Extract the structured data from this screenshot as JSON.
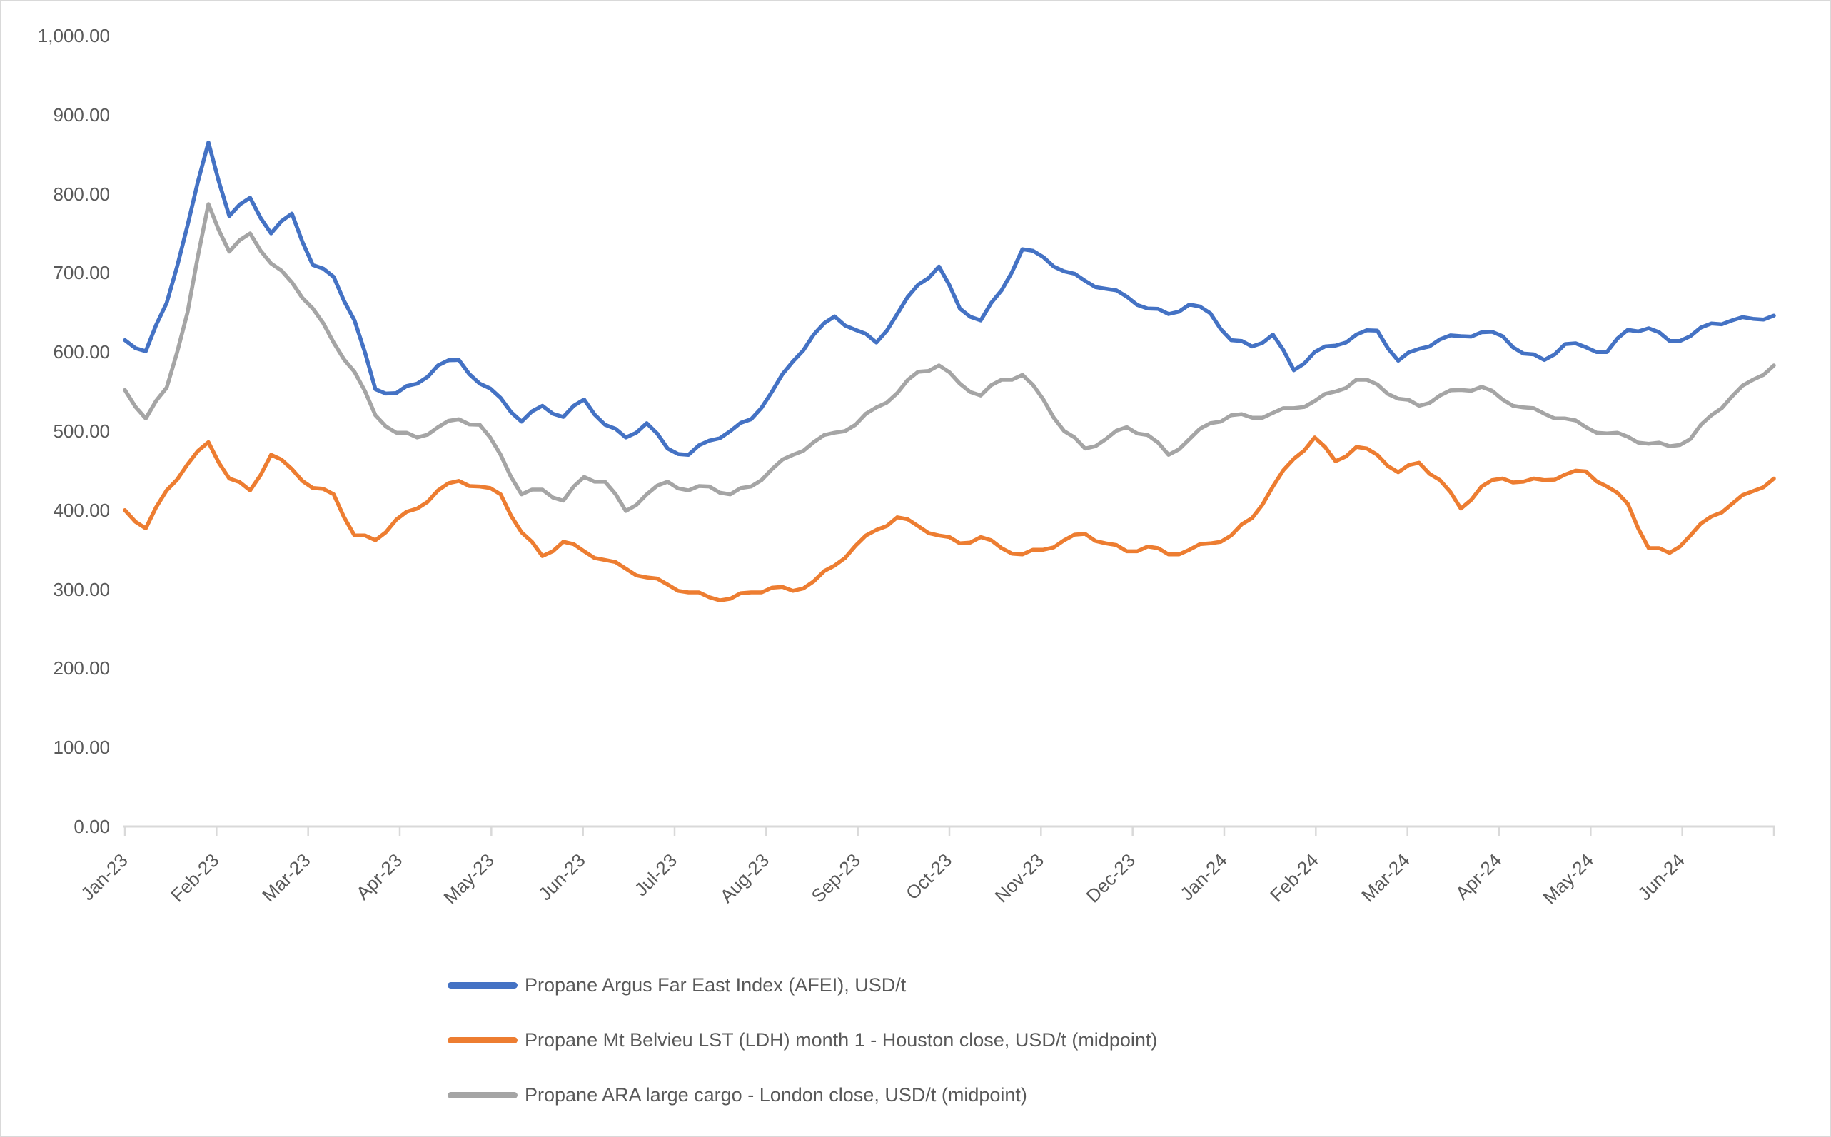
{
  "chart_data": {
    "type": "line",
    "title": "",
    "xlabel": "",
    "ylabel": "",
    "grid": false,
    "legend_position": "bottom-left",
    "ylim": [
      0,
      1000
    ],
    "y_step": 100,
    "y_tick_labels": [
      "0.00",
      "100.00",
      "200.00",
      "300.00",
      "400.00",
      "500.00",
      "600.00",
      "700.00",
      "800.00",
      "900.00",
      "1,000.00"
    ],
    "x_tick_labels": [
      "Jan-23",
      "Feb-23",
      "Mar-23",
      "Apr-23",
      "May-23",
      "Jun-23",
      "Jul-23",
      "Aug-23",
      "Sep-23",
      "Oct-23",
      "Nov-23",
      "Dec-23",
      "Jan-24",
      "Feb-24",
      "Mar-24",
      "Apr-24",
      "May-24",
      "Jun-24"
    ],
    "x_months_total": 18,
    "sampling": "approx weekly values digitized from daily price lines, Jan 2023 - early Jul 2024",
    "series": [
      {
        "id": "afei",
        "name": "Propane Argus Far East Index (AFEI), USD/t",
        "color": "#4472C4",
        "values": [
          615,
          601,
          662,
          760,
          865,
          772,
          795,
          750,
          775,
          710,
          695,
          640,
          553,
          548,
          560,
          583,
          590,
          560,
          542,
          512,
          532,
          518,
          540,
          508,
          492,
          510,
          478,
          470,
          488,
          500,
          515,
          550,
          588,
          622,
          645,
          628,
          612,
          648,
          685,
          708,
          655,
          640,
          678,
          730,
          720,
          702,
          690,
          680,
          670,
          655,
          648,
          660,
          649,
          615,
          607,
          622,
          577,
          600,
          608,
          622,
          627,
          589,
          604,
          616,
          620,
          625,
          620,
          598,
          590,
          610,
          606,
          600,
          628,
          630,
          614,
          620,
          636,
          640,
          642,
          646
        ]
      },
      {
        "id": "mt-belvieu",
        "name": "Propane Mt Belvieu LST (LDH) month 1 - Houston close, USD/t (midpoint)",
        "color": "#ED7D31",
        "values": [
          400,
          377,
          425,
          458,
          486,
          440,
          425,
          470,
          452,
          428,
          420,
          368,
          362,
          388,
          402,
          425,
          437,
          430,
          420,
          372,
          342,
          360,
          348,
          337,
          326,
          315,
          306,
          296,
          290,
          288,
          296,
          302,
          298,
          310,
          330,
          355,
          375,
          391,
          380,
          368,
          358,
          366,
          352,
          344,
          350,
          362,
          370,
          358,
          348,
          354,
          344,
          350,
          358,
          368,
          390,
          430,
          465,
          492,
          462,
          480,
          470,
          448,
          460,
          438,
          402,
          430,
          440,
          436,
          438,
          445,
          449,
          430,
          408,
          352,
          346,
          368,
          392,
          408,
          424,
          440
        ]
      },
      {
        "id": "ara",
        "name": "Propane ARA large cargo - London close, USD/t (midpoint)",
        "color": "#A5A5A5",
        "values": [
          552,
          516,
          555,
          650,
          787,
          727,
          750,
          712,
          688,
          655,
          612,
          575,
          520,
          498,
          492,
          505,
          515,
          508,
          470,
          420,
          426,
          412,
          442,
          436,
          399,
          420,
          436,
          425,
          430,
          420,
          430,
          452,
          470,
          486,
          498,
          508,
          530,
          548,
          575,
          583,
          560,
          545,
          565,
          571,
          540,
          500,
          478,
          490,
          505,
          495,
          470,
          490,
          510,
          520,
          517,
          523,
          529,
          538,
          550,
          565,
          559,
          541,
          532,
          545,
          552,
          556,
          540,
          530,
          522,
          516,
          505,
          497,
          493,
          484,
          481,
          490,
          520,
          544,
          565,
          583
        ]
      }
    ]
  },
  "colors": {
    "background": "#FFFFFF",
    "border": "#D9D9D9",
    "axis_line": "#D9D9D9",
    "tick_mark": "#D9D9D9",
    "label_text": "#595959"
  }
}
